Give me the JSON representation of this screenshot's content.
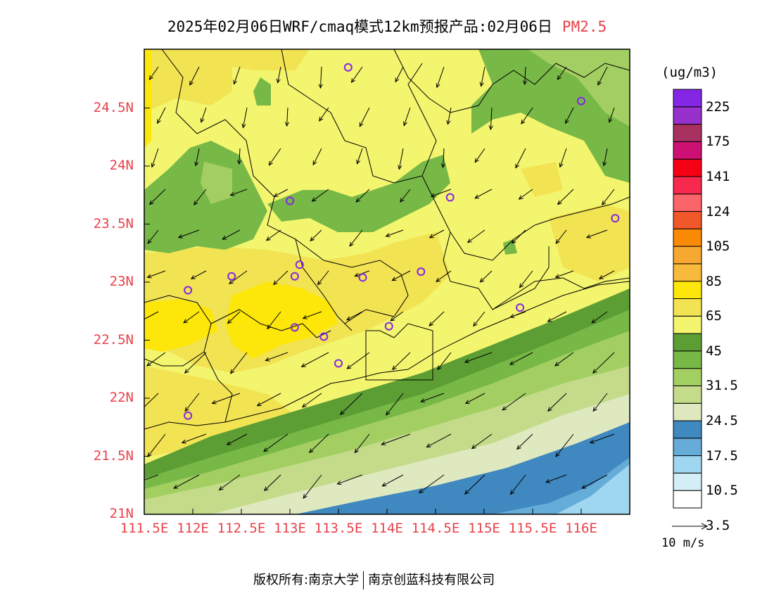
{
  "title": {
    "main": "2025年02月06日WRF/cmaq模式12km预报产品:02月06日",
    "pollutant": "PM2.5"
  },
  "chart_data": {
    "type": "heatmap",
    "variable": "PM2.5",
    "unit": "(ug/m3)",
    "x_axis": {
      "range": [
        111.5,
        116.5
      ],
      "ticks": [
        "111.5E",
        "112E",
        "112.5E",
        "113E",
        "113.5E",
        "114E",
        "114.5E",
        "115E",
        "115.5E",
        "116E"
      ]
    },
    "y_axis": {
      "range": [
        21,
        25
      ],
      "ticks": [
        "21N",
        "21.5N",
        "22N",
        "22.5N",
        "23N",
        "23.5N",
        "24N",
        "24.5N"
      ]
    },
    "colorbar": {
      "labels": [
        "225",
        "175",
        "141",
        "124",
        "105",
        "85",
        "65",
        "45",
        "31.5",
        "24.5",
        "17.5",
        "10.5",
        "3.5"
      ],
      "colors": [
        "#ffffff",
        "#d4eef7",
        "#9fd6f0",
        "#66acd9",
        "#3f88c0",
        "#dfe9bf",
        "#c4db8a",
        "#a3cf62",
        "#78b847",
        "#5d9e34",
        "#f3f56e",
        "#f2e353",
        "#fde60a",
        "#f7ba3c",
        "#f7a830",
        "#fa8a05",
        "#f0582c",
        "#fa6569",
        "#f8294e",
        "#f60013",
        "#cd1174",
        "#a93160",
        "#9830cb",
        "#8526e4"
      ]
    },
    "wind_scale_label": "10 m/s",
    "stations": [
      {
        "lon": 113.6,
        "lat": 24.85
      },
      {
        "lon": 113.0,
        "lat": 23.7
      },
      {
        "lon": 114.65,
        "lat": 23.73
      },
      {
        "lon": 116.0,
        "lat": 24.56
      },
      {
        "lon": 116.35,
        "lat": 23.55
      },
      {
        "lon": 112.4,
        "lat": 23.05
      },
      {
        "lon": 111.95,
        "lat": 22.93
      },
      {
        "lon": 113.1,
        "lat": 23.15
      },
      {
        "lon": 113.05,
        "lat": 23.05
      },
      {
        "lon": 113.75,
        "lat": 23.04
      },
      {
        "lon": 114.35,
        "lat": 23.09
      },
      {
        "lon": 113.05,
        "lat": 22.61
      },
      {
        "lon": 113.35,
        "lat": 22.53
      },
      {
        "lon": 114.02,
        "lat": 22.62
      },
      {
        "lon": 115.37,
        "lat": 22.78
      },
      {
        "lon": 113.5,
        "lat": 22.3
      },
      {
        "lon": 111.95,
        "lat": 21.85
      }
    ]
  },
  "footer": {
    "copyright": "版权所有:南京大学",
    "company": "南京创蓝科技有限公司"
  }
}
